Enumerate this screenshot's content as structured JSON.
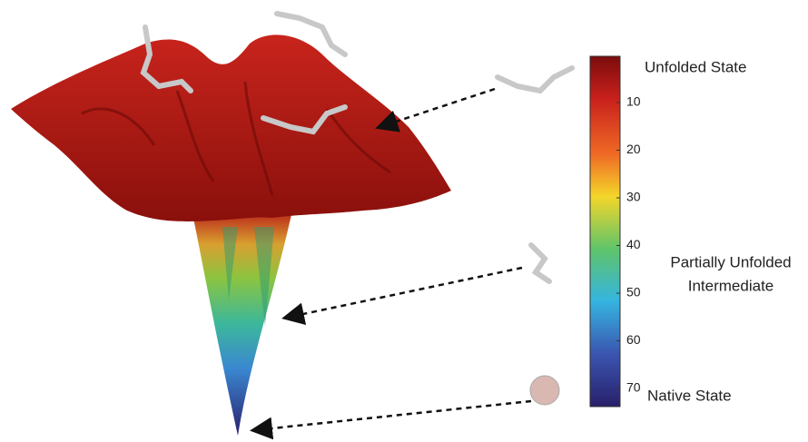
{
  "labels": {
    "unfolded": "Unfolded State",
    "intermediate": [
      "Partially Unfolded",
      "Intermediate"
    ],
    "native": "Native State"
  },
  "colorbar": {
    "ticks": [
      "10",
      "20",
      "30",
      "40",
      "50",
      "60",
      "70"
    ]
  }
}
